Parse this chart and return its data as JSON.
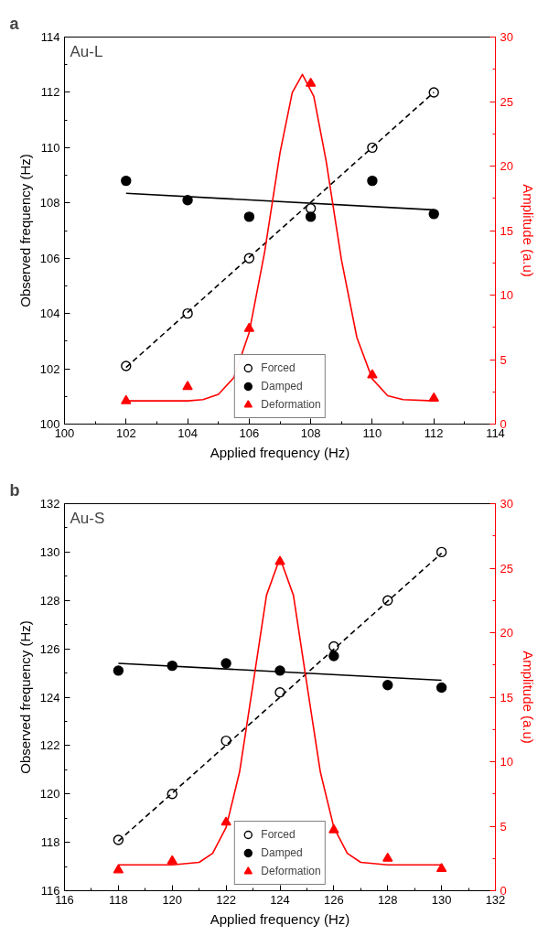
{
  "chart_data": [
    {
      "type": "scatter",
      "title": "a",
      "xlabel": "Applied frequency (Hz)",
      "ylabel": "Observed frequency (Hz)",
      "y2label": "Amplitude (a.u)",
      "annotations": [
        "Au-L"
      ],
      "xlim": [
        100,
        114
      ],
      "xticks": [
        100,
        102,
        104,
        106,
        108,
        110,
        112,
        114
      ],
      "ylim": [
        100,
        114
      ],
      "yticks": [
        100,
        102,
        104,
        106,
        108,
        110,
        112,
        114
      ],
      "y2lim": [
        0,
        30
      ],
      "y2ticks": [
        0,
        5,
        10,
        15,
        20,
        25,
        30
      ],
      "grid": false,
      "legend": "bottom",
      "series": [
        {
          "name": "Forced",
          "marker": "circle_open",
          "color": "#000000",
          "x": [
            102,
            104,
            106,
            108,
            110,
            112
          ],
          "values": [
            102.1,
            104.0,
            106.0,
            107.8,
            110.0,
            112.0
          ]
        },
        {
          "name": "Damped",
          "marker": "circle",
          "color": "#000000",
          "x": [
            102,
            104,
            106,
            108,
            110,
            112
          ],
          "values": [
            108.8,
            108.1,
            107.5,
            107.5,
            108.8,
            107.6
          ]
        },
        {
          "name": "Deformation",
          "marker": "triangle",
          "color": "#ff0000",
          "axis": "y2",
          "x": [
            102,
            104,
            106,
            108,
            110,
            112
          ],
          "values": [
            1.8,
            2.9,
            7.4,
            26.4,
            3.8,
            2.0
          ]
        },
        {
          "type": "line",
          "line_style": "dashed",
          "color": "#000000",
          "x": [
            102,
            112
          ],
          "values": [
            102.05,
            112.0
          ]
        },
        {
          "type": "line",
          "line_style": "solid",
          "color": "#000000",
          "x": [
            102,
            112
          ],
          "values": [
            108.35,
            107.75
          ]
        },
        {
          "type": "line",
          "line_style": "solid",
          "color": "#ff0000",
          "axis": "y2",
          "x": [
            102,
            104,
            104.5,
            105,
            105.5,
            106,
            106.5,
            107,
            107.4,
            107.73,
            108.1,
            108.5,
            109,
            109.5,
            110,
            110.5,
            111,
            112
          ],
          "values": [
            1.8,
            1.8,
            1.9,
            2.3,
            3.6,
            7.1,
            13.3,
            21.0,
            25.7,
            27.1,
            25.4,
            20.4,
            12.7,
            6.7,
            3.5,
            2.2,
            1.9,
            1.8
          ]
        }
      ]
    },
    {
      "type": "scatter",
      "title": "b",
      "xlabel": "Applied frequency (Hz)",
      "ylabel": "Observed frequency (Hz)",
      "y2label": "Amplitude (a.u)",
      "annotations": [
        "Au-S"
      ],
      "xlim": [
        116,
        132
      ],
      "xticks": [
        116,
        118,
        120,
        122,
        124,
        126,
        128,
        130,
        132
      ],
      "ylim": [
        116,
        132
      ],
      "yticks": [
        116,
        118,
        120,
        122,
        124,
        126,
        128,
        130,
        132
      ],
      "y2lim": [
        0,
        30
      ],
      "y2ticks": [
        0,
        5,
        10,
        15,
        20,
        25,
        30
      ],
      "grid": false,
      "legend": "bottom",
      "series": [
        {
          "name": "Forced",
          "marker": "circle_open",
          "color": "#000000",
          "x": [
            118,
            120,
            122,
            124,
            126,
            128,
            130
          ],
          "values": [
            118.1,
            120.0,
            122.2,
            124.2,
            126.1,
            128.0,
            130.0
          ]
        },
        {
          "name": "Damped",
          "marker": "circle",
          "color": "#000000",
          "x": [
            118,
            120,
            122,
            124,
            126,
            128,
            130
          ],
          "values": [
            125.1,
            125.3,
            125.4,
            125.1,
            125.7,
            124.5,
            124.4
          ]
        },
        {
          "name": "Deformation",
          "marker": "triangle",
          "color": "#ff0000",
          "axis": "y2",
          "x": [
            118,
            120,
            122,
            124,
            126,
            128,
            130
          ],
          "values": [
            1.6,
            2.3,
            5.3,
            25.5,
            4.7,
            2.5,
            1.7
          ]
        },
        {
          "type": "line",
          "line_style": "dashed",
          "color": "#000000",
          "x": [
            118,
            130
          ],
          "values": [
            118.05,
            129.95
          ]
        },
        {
          "type": "line",
          "line_style": "solid",
          "color": "#000000",
          "x": [
            118,
            130
          ],
          "values": [
            125.4,
            124.7
          ]
        },
        {
          "type": "line",
          "line_style": "solid",
          "color": "#ff0000",
          "axis": "y2",
          "x": [
            118,
            120,
            121,
            121.5,
            122,
            122.5,
            123,
            123.5,
            124,
            124.5,
            125,
            125.5,
            126,
            126.5,
            127,
            128,
            130
          ],
          "values": [
            2.0,
            2.0,
            2.2,
            2.9,
            4.9,
            9.2,
            16.0,
            22.9,
            25.8,
            22.9,
            16.0,
            9.2,
            4.9,
            2.9,
            2.2,
            2.0,
            2.0
          ]
        }
      ]
    }
  ]
}
